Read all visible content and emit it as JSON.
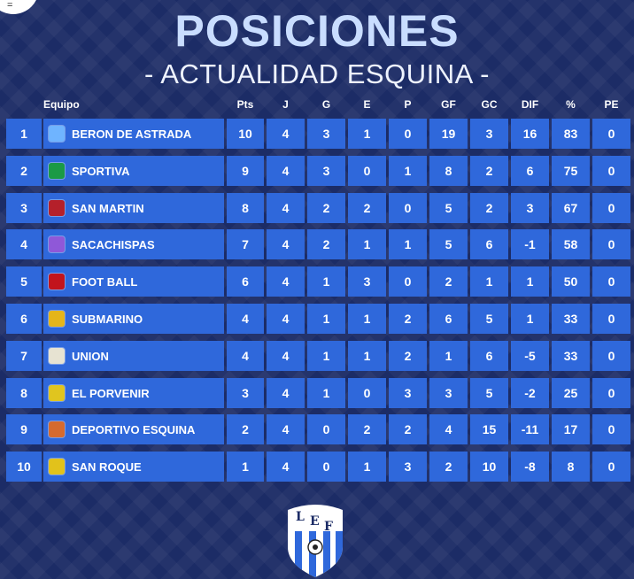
{
  "title": "POSICIONES",
  "subtitle": "- ACTUALIDAD ESQUINA -",
  "corner_text": "=",
  "headers": {
    "team": "Equipo",
    "pts": "Pts",
    "j": "J",
    "g": "G",
    "e": "E",
    "p": "P",
    "gf": "GF",
    "gc": "GC",
    "dif": "DIF",
    "pct": "%",
    "pe": "PE"
  },
  "rows": [
    {
      "pos": "1",
      "team": "BERON DE ASTRADA",
      "pts": "10",
      "j": "4",
      "g": "3",
      "e": "1",
      "p": "0",
      "gf": "19",
      "gc": "3",
      "dif": "16",
      "pct": "83",
      "pe": "0"
    },
    {
      "pos": "2",
      "team": "SPORTIVA",
      "pts": "9",
      "j": "4",
      "g": "3",
      "e": "0",
      "p": "1",
      "gf": "8",
      "gc": "2",
      "dif": "6",
      "pct": "75",
      "pe": "0"
    },
    {
      "pos": "3",
      "team": "SAN MARTIN",
      "pts": "8",
      "j": "4",
      "g": "2",
      "e": "2",
      "p": "0",
      "gf": "5",
      "gc": "2",
      "dif": "3",
      "pct": "67",
      "pe": "0"
    },
    {
      "pos": "4",
      "team": "SACACHISPAS",
      "pts": "7",
      "j": "4",
      "g": "2",
      "e": "1",
      "p": "1",
      "gf": "5",
      "gc": "6",
      "dif": "-1",
      "pct": "58",
      "pe": "0"
    },
    {
      "pos": "5",
      "team": "FOOT BALL",
      "pts": "6",
      "j": "4",
      "g": "1",
      "e": "3",
      "p": "0",
      "gf": "2",
      "gc": "1",
      "dif": "1",
      "pct": "50",
      "pe": "0"
    },
    {
      "pos": "6",
      "team": "SUBMARINO",
      "pts": "4",
      "j": "4",
      "g": "1",
      "e": "1",
      "p": "2",
      "gf": "6",
      "gc": "5",
      "dif": "1",
      "pct": "33",
      "pe": "0"
    },
    {
      "pos": "7",
      "team": "UNION",
      "pts": "4",
      "j": "4",
      "g": "1",
      "e": "1",
      "p": "2",
      "gf": "1",
      "gc": "6",
      "dif": "-5",
      "pct": "33",
      "pe": "0"
    },
    {
      "pos": "8",
      "team": "EL PORVENIR",
      "pts": "3",
      "j": "4",
      "g": "1",
      "e": "0",
      "p": "3",
      "gf": "3",
      "gc": "5",
      "dif": "-2",
      "pct": "25",
      "pe": "0"
    },
    {
      "pos": "9",
      "team": "DEPORTIVO ESQUINA",
      "pts": "2",
      "j": "4",
      "g": "0",
      "e": "2",
      "p": "2",
      "gf": "4",
      "gc": "15",
      "dif": "-11",
      "pct": "17",
      "pe": "0"
    },
    {
      "pos": "10",
      "team": "SAN ROQUE",
      "pts": "1",
      "j": "4",
      "g": "0",
      "e": "1",
      "p": "3",
      "gf": "2",
      "gc": "10",
      "dif": "-8",
      "pct": "8",
      "pe": "0"
    }
  ],
  "crest_icons": [
    "beron-de-astrada-crest-icon",
    "sportiva-crest-icon",
    "san-martin-crest-icon",
    "sacachispas-crest-icon",
    "foot-ball-crest-icon",
    "submarino-crest-icon",
    "union-crest-icon",
    "el-porvenir-crest-icon",
    "deportivo-esquina-crest-icon",
    "san-roque-crest-icon"
  ],
  "logo": {
    "letters": [
      "L",
      "E",
      "F"
    ],
    "icon": "lef-shield-icon"
  },
  "colors": {
    "background": "#1c2c66",
    "row": "#2f68db",
    "title": "#c9ddff",
    "crests": [
      "#6fb4ff",
      "#1b9a46",
      "#b5202a",
      "#8f58d8",
      "#c2141c",
      "#e5b51a",
      "#e7e3d2",
      "#e0c51f",
      "#d56a2e",
      "#e2c21b"
    ]
  }
}
